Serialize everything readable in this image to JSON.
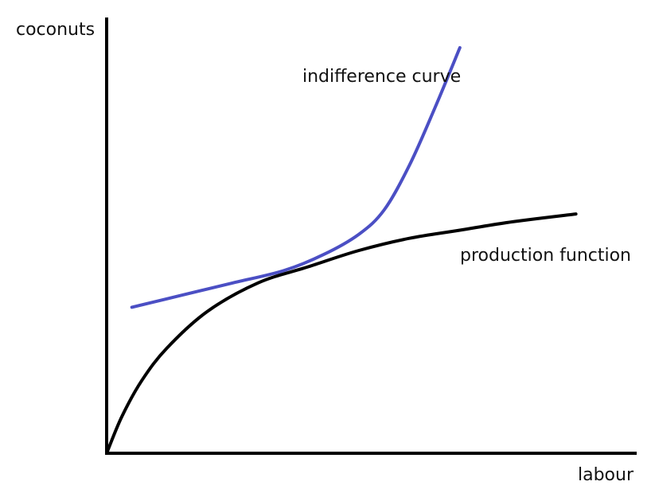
{
  "chart_data": {
    "type": "line",
    "title": "",
    "xlabel": "labour",
    "ylabel": "coconuts",
    "xlim": [
      0,
      1
    ],
    "ylim": [
      0,
      1
    ],
    "grid": false,
    "legend": "none",
    "series": [
      {
        "name": "indifference curve",
        "color": "#4b4fc4",
        "points": [
          [
            0.05,
            0.36
          ],
          [
            0.15,
            0.39
          ],
          [
            0.25,
            0.42
          ],
          [
            0.35,
            0.45
          ],
          [
            0.43,
            0.49
          ],
          [
            0.5,
            0.54
          ],
          [
            0.55,
            0.6
          ],
          [
            0.6,
            0.71
          ],
          [
            0.65,
            0.85
          ],
          [
            0.7,
            1.0
          ]
        ]
      },
      {
        "name": "production function",
        "color": "#000000",
        "points": [
          [
            0.0,
            0.0
          ],
          [
            0.03,
            0.09
          ],
          [
            0.07,
            0.18
          ],
          [
            0.12,
            0.26
          ],
          [
            0.2,
            0.35
          ],
          [
            0.3,
            0.42
          ],
          [
            0.4,
            0.46
          ],
          [
            0.5,
            0.5
          ],
          [
            0.6,
            0.53
          ],
          [
            0.7,
            0.55
          ],
          [
            0.8,
            0.57
          ],
          [
            0.93,
            0.59
          ]
        ]
      }
    ]
  }
}
